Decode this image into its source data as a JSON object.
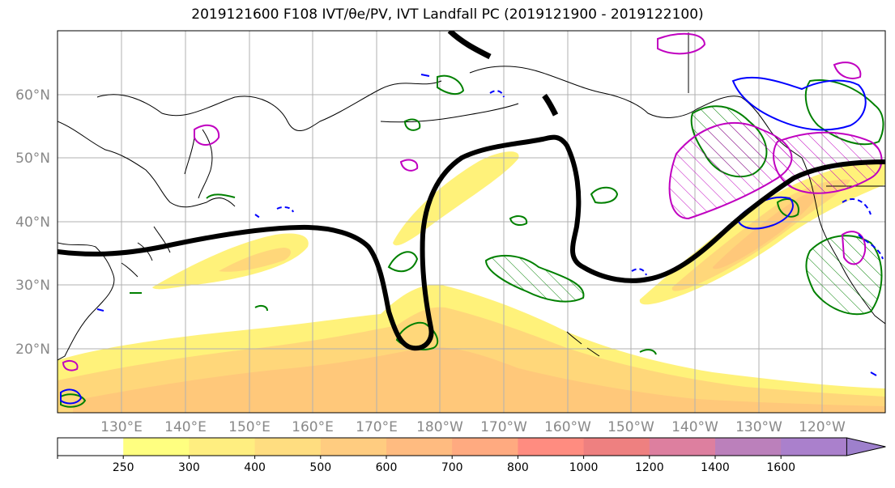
{
  "title": "2019121600 F108 IVT/θe/PV, IVT Landfall PC (2019121900 - 2019122100)",
  "map": {
    "projection": "cylindrical",
    "lon_labels": [
      "130°E",
      "140°E",
      "150°E",
      "160°E",
      "170°E",
      "180°W",
      "170°W",
      "160°W",
      "150°W",
      "140°W",
      "130°W",
      "120°W"
    ],
    "lat_labels": [
      "20°N",
      "30°N",
      "40°N",
      "50°N",
      "60°N"
    ],
    "grid": true
  },
  "colorbar": {
    "ticks": [
      "250",
      "300",
      "400",
      "500",
      "600",
      "700",
      "800",
      "1000",
      "1200",
      "1400",
      "1600"
    ],
    "colors": [
      "#ffffff",
      "#ffff80",
      "#ffee80",
      "#ffdd80",
      "#ffcc80",
      "#ffbb80",
      "#ffaa80",
      "#ff8c80",
      "#ee8080",
      "#dd7f9f",
      "#bb80bb",
      "#aa80cc",
      "#9e80cc"
    ],
    "extend": "max"
  },
  "contour_colors": {
    "ivt_fill": "#ffee60",
    "pc_line": "#000000",
    "green": "#008000",
    "blue": "#0000ff",
    "magenta": "#c000c0"
  }
}
